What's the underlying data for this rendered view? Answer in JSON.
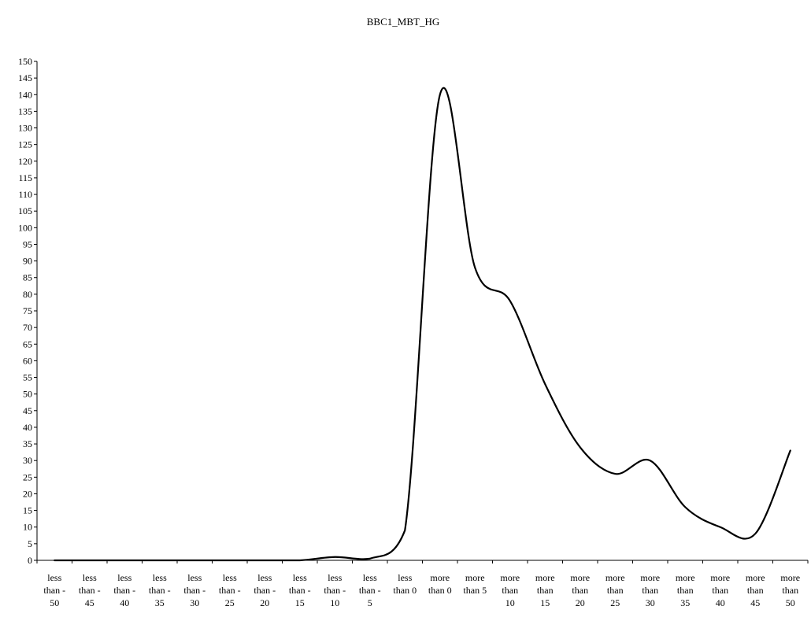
{
  "chart_data": {
    "type": "line",
    "title": "BBC1_MBT_HG",
    "xlabel": "",
    "ylabel": "",
    "ylim": [
      0,
      150
    ],
    "y_ticks": [
      0,
      5,
      10,
      15,
      20,
      25,
      30,
      35,
      40,
      45,
      50,
      55,
      60,
      65,
      70,
      75,
      80,
      85,
      90,
      95,
      100,
      105,
      110,
      115,
      120,
      125,
      130,
      135,
      140,
      145,
      150
    ],
    "grid": false,
    "legend": "none",
    "line_color": "#000000",
    "categories": [
      [
        "less",
        "than -",
        "50"
      ],
      [
        "less",
        "than -",
        "45"
      ],
      [
        "less",
        "than -",
        "40"
      ],
      [
        "less",
        "than -",
        "35"
      ],
      [
        "less",
        "than -",
        "30"
      ],
      [
        "less",
        "than -",
        "25"
      ],
      [
        "less",
        "than -",
        "20"
      ],
      [
        "less",
        "than -",
        "15"
      ],
      [
        "less",
        "than -",
        "10"
      ],
      [
        "less",
        "than -",
        "5"
      ],
      [
        "less",
        "than 0"
      ],
      [
        "more",
        "than 0"
      ],
      [
        "more",
        "than 5"
      ],
      [
        "more",
        "than",
        "10"
      ],
      [
        "more",
        "than",
        "15"
      ],
      [
        "more",
        "than",
        "20"
      ],
      [
        "more",
        "than",
        "25"
      ],
      [
        "more",
        "than",
        "30"
      ],
      [
        "more",
        "than",
        "35"
      ],
      [
        "more",
        "than",
        "40"
      ],
      [
        "more",
        "than",
        "45"
      ],
      [
        "more",
        "than",
        "50"
      ]
    ],
    "series": [
      {
        "values": [
          0,
          0,
          0,
          0,
          0,
          0,
          0,
          0,
          1,
          0.5,
          9,
          140,
          88,
          78,
          53,
          34,
          26,
          30,
          16,
          10,
          8,
          33
        ]
      }
    ]
  }
}
